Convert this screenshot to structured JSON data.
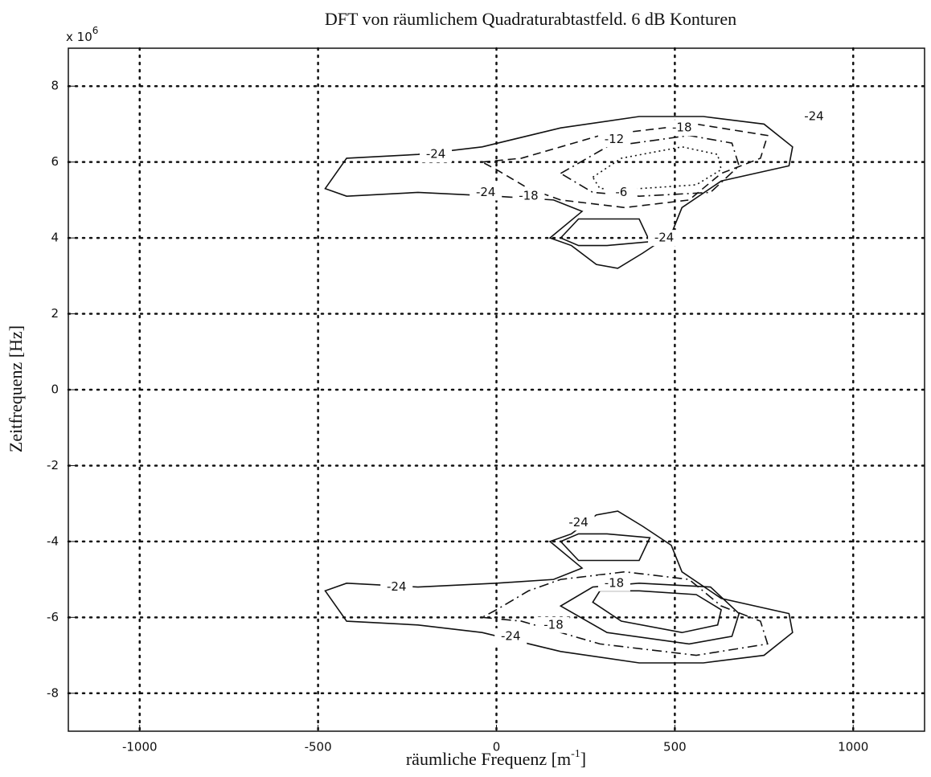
{
  "chart_data": {
    "type": "contour",
    "title": "DFT von räumlichem Quadraturabtastfeld. 6 dB Konturen",
    "xlabel": {
      "text": "räumliche Frequenz [m",
      "superscript": "-1",
      "close": "]"
    },
    "ylabel": "Zeitfrequenz [Hz]",
    "y_multiplier": {
      "base": "x 10",
      "exponent": "6"
    },
    "xlim": [
      -1200,
      1200
    ],
    "ylim": [
      -9,
      9
    ],
    "xticks": [
      -1000,
      -500,
      0,
      500,
      1000
    ],
    "yticks": [
      -8,
      -6,
      -4,
      -2,
      0,
      2,
      4,
      6,
      8
    ],
    "grid": true,
    "grid_style": "dotted",
    "color": "#111111",
    "contours": [
      {
        "level": -24,
        "style": "solid",
        "x": [
          -480,
          -420,
          -220,
          -40,
          180,
          400,
          580,
          750,
          830,
          820,
          630,
          520,
          490,
          410,
          340,
          280,
          210,
          150,
          240,
          160,
          0,
          -220,
          -420
        ],
        "y": [
          5.3,
          6.1,
          6.2,
          6.4,
          6.9,
          7.2,
          7.2,
          7.0,
          6.4,
          5.9,
          5.5,
          4.8,
          4.1,
          3.6,
          3.2,
          3.3,
          3.8,
          4.0,
          4.7,
          5.0,
          5.1,
          5.2,
          5.1
        ],
        "label_at": [
          [
            -170,
            6.2
          ],
          [
            -30,
            5.2
          ],
          [
            890,
            7.2
          ],
          [
            470,
            4.0
          ]
        ]
      },
      {
        "level": -24,
        "style": "solid",
        "x": [
          180,
          230,
          400,
          430,
          310,
          230
        ],
        "y": [
          4.0,
          4.5,
          4.5,
          3.9,
          3.8,
          3.8
        ],
        "label_at": []
      },
      {
        "level": -18,
        "style": "dashed",
        "x": [
          -40,
          70,
          290,
          560,
          760,
          740,
          630,
          540,
          360,
          180,
          90,
          0
        ],
        "y": [
          6.0,
          6.1,
          6.7,
          7.0,
          6.7,
          6.1,
          5.7,
          5.0,
          4.8,
          5.0,
          5.3,
          5.8
        ],
        "label_at": [
          [
            520,
            6.9
          ],
          [
            90,
            5.1
          ]
        ]
      },
      {
        "level": -12,
        "style": "dashdot",
        "x": [
          180,
          310,
          540,
          660,
          680,
          600,
          400,
          270
        ],
        "y": [
          5.7,
          6.4,
          6.7,
          6.5,
          5.9,
          5.2,
          5.1,
          5.2
        ],
        "label_at": [
          [
            330,
            6.6
          ]
        ]
      },
      {
        "level": -6,
        "style": "dotted",
        "x": [
          270,
          350,
          520,
          620,
          630,
          560,
          400,
          290
        ],
        "y": [
          5.6,
          6.1,
          6.4,
          6.2,
          5.8,
          5.4,
          5.3,
          5.3
        ],
        "label_at": [
          [
            350,
            5.2
          ]
        ]
      },
      {
        "level": -24,
        "style": "solid",
        "x": [
          -480,
          -420,
          -220,
          -40,
          180,
          400,
          580,
          750,
          830,
          820,
          630,
          520,
          490,
          410,
          340,
          280,
          210,
          150,
          240,
          160,
          0,
          -220,
          -420
        ],
        "y": [
          -5.3,
          -6.1,
          -6.2,
          -6.4,
          -6.9,
          -7.2,
          -7.2,
          -7.0,
          -6.4,
          -5.9,
          -5.5,
          -4.8,
          -4.1,
          -3.6,
          -3.2,
          -3.3,
          -3.8,
          -4.0,
          -4.7,
          -5.0,
          -5.1,
          -5.2,
          -5.1
        ],
        "label_at": [
          [
            -280,
            -5.2
          ],
          [
            40,
            -6.5
          ],
          [
            230,
            -3.5
          ]
        ]
      },
      {
        "level": -24,
        "style": "solid",
        "x": [
          180,
          230,
          400,
          430,
          310,
          230
        ],
        "y": [
          -4.0,
          -4.5,
          -4.5,
          -3.9,
          -3.8,
          -3.8
        ],
        "label_at": []
      },
      {
        "level": -18,
        "style": "dashdot",
        "x": [
          -40,
          70,
          290,
          560,
          760,
          740,
          630,
          540,
          360,
          180,
          90,
          0
        ],
        "y": [
          -6.0,
          -6.1,
          -6.7,
          -7.0,
          -6.7,
          -6.1,
          -5.7,
          -5.0,
          -4.8,
          -5.0,
          -5.3,
          -5.8
        ],
        "label_at": [
          [
            330,
            -5.1
          ],
          [
            160,
            -6.2
          ]
        ]
      },
      {
        "level": -12,
        "style": "solid",
        "x": [
          180,
          310,
          540,
          660,
          680,
          600,
          400,
          270
        ],
        "y": [
          -5.7,
          -6.4,
          -6.7,
          -6.5,
          -5.9,
          -5.2,
          -5.1,
          -5.2
        ],
        "label_at": []
      },
      {
        "level": -6,
        "style": "solid",
        "x": [
          270,
          350,
          520,
          620,
          630,
          560,
          400,
          290
        ],
        "y": [
          -5.6,
          -6.1,
          -6.4,
          -6.2,
          -5.8,
          -5.4,
          -5.3,
          -5.3
        ],
        "label_at": []
      }
    ]
  }
}
